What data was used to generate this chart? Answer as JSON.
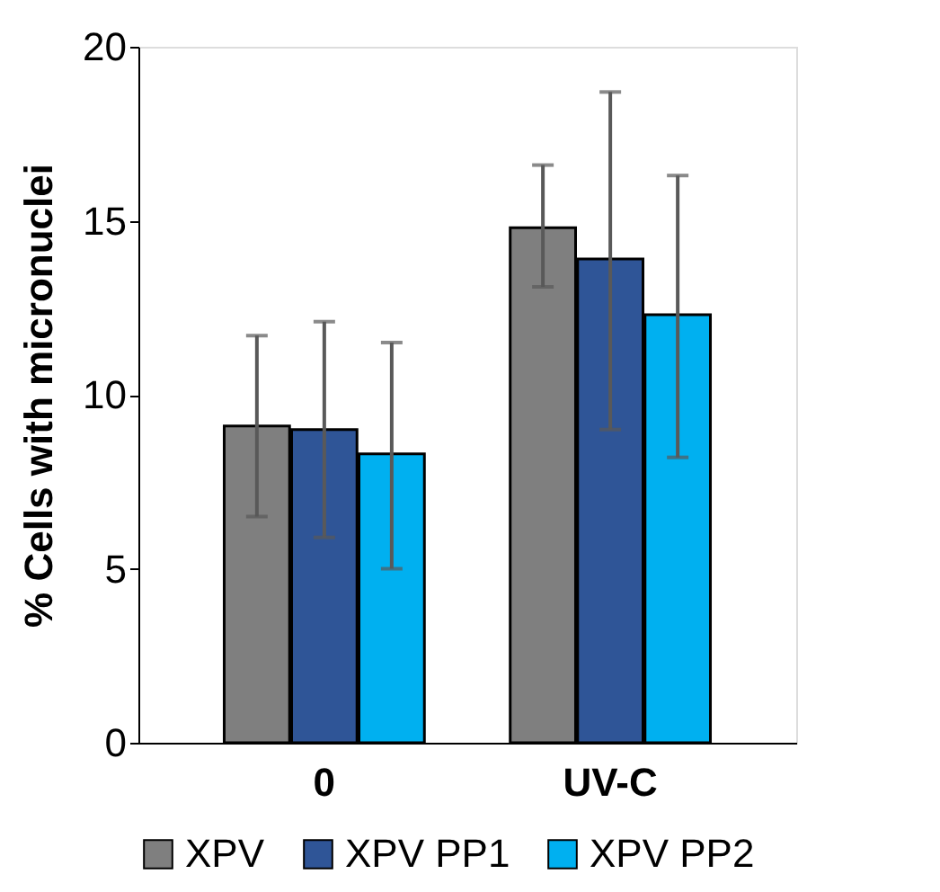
{
  "chart_data": {
    "type": "bar",
    "ylabel": "% Cells with micronuclei",
    "categories": [
      "0",
      "UV-C"
    ],
    "series": [
      {
        "name": "XPV",
        "color": "#7f7f7f",
        "values": [
          9.1,
          14.8
        ],
        "errors": [
          [
            6.5,
            11.7
          ],
          [
            13.1,
            16.6
          ]
        ]
      },
      {
        "name": "XPV PP1",
        "color": "#2f5597",
        "values": [
          9.0,
          13.9
        ],
        "errors": [
          [
            5.9,
            12.1
          ],
          [
            9.0,
            18.7
          ]
        ]
      },
      {
        "name": "XPV PP2",
        "color": "#00b0f0",
        "values": [
          8.3,
          12.3
        ],
        "errors": [
          [
            5.0,
            11.5
          ],
          [
            8.2,
            16.3
          ]
        ]
      }
    ],
    "ylim": [
      0,
      20
    ],
    "yticks": [
      0,
      5,
      10,
      15,
      20
    ],
    "grid": false,
    "legend": "bottom"
  }
}
